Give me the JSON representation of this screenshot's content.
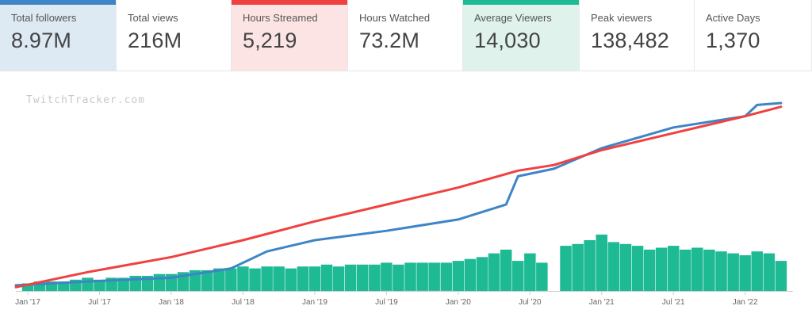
{
  "stats": [
    {
      "label": "Total followers",
      "value": "8.97M",
      "bg": "#dde9f3",
      "accent": "#3d85c6"
    },
    {
      "label": "Total views",
      "value": "216M",
      "bg": "#ffffff",
      "accent": ""
    },
    {
      "label": "Hours Streamed",
      "value": "5,219",
      "bg": "#fde4e4",
      "accent": "#f04141"
    },
    {
      "label": "Hours Watched",
      "value": "73.2M",
      "bg": "#ffffff",
      "accent": ""
    },
    {
      "label": "Average Viewers",
      "value": "14,030",
      "bg": "#dff3ec",
      "accent": "#1dba93"
    },
    {
      "label": "Peak viewers",
      "value": "138,482",
      "bg": "#ffffff",
      "accent": ""
    },
    {
      "label": "Active Days",
      "value": "1,370",
      "bg": "#ffffff",
      "accent": ""
    }
  ],
  "watermark": "TwitchTracker.com",
  "chart_data": {
    "type": "bar",
    "x_ticks": [
      "Jan '17",
      "Jul '17",
      "Jan '18",
      "Jul '18",
      "Jan '19",
      "Jul '19",
      "Jan '20",
      "Jul '20",
      "Jan '21",
      "Jul '21",
      "Jan '22"
    ],
    "x_range": [
      "2016-12",
      "2022-05"
    ],
    "ylim": [
      0,
      1
    ],
    "grid": false,
    "colors": {
      "viewers": "#1dba93",
      "followers": "#3d85c6",
      "hours": "#f04141"
    },
    "series": [
      {
        "type": "line",
        "color": "#3d85c6",
        "x": [
          "2016-12",
          "2017-06",
          "2018-01",
          "2018-06",
          "2018-09",
          "2019-01",
          "2019-07",
          "2020-01",
          "2020-05",
          "2020-06",
          "2020-09",
          "2021-01",
          "2021-07",
          "2022-01",
          "2022-02",
          "2022-04"
        ],
        "values": [
          0.03,
          0.05,
          0.07,
          0.12,
          0.21,
          0.27,
          0.32,
          0.38,
          0.46,
          0.61,
          0.65,
          0.76,
          0.87,
          0.93,
          0.99,
          1.0
        ]
      },
      {
        "type": "line",
        "color": "#f04141",
        "x": [
          "2016-12",
          "2017-06",
          "2018-01",
          "2018-07",
          "2019-01",
          "2019-07",
          "2020-01",
          "2020-06",
          "2020-09",
          "2021-01",
          "2021-07",
          "2022-01",
          "2022-04"
        ],
        "values": [
          0.02,
          0.1,
          0.18,
          0.27,
          0.37,
          0.46,
          0.55,
          0.64,
          0.67,
          0.75,
          0.84,
          0.93,
          0.98
        ]
      },
      {
        "type": "bar",
        "color": "#1dba93",
        "x": [
          "2017-01",
          "2017-02",
          "2017-03",
          "2017-04",
          "2017-05",
          "2017-06",
          "2017-07",
          "2017-08",
          "2017-09",
          "2017-10",
          "2017-11",
          "2017-12",
          "2018-01",
          "2018-02",
          "2018-03",
          "2018-04",
          "2018-05",
          "2018-06",
          "2018-07",
          "2018-08",
          "2018-09",
          "2018-10",
          "2018-11",
          "2018-12",
          "2019-01",
          "2019-02",
          "2019-03",
          "2019-04",
          "2019-05",
          "2019-06",
          "2019-07",
          "2019-08",
          "2019-09",
          "2019-10",
          "2019-11",
          "2019-12",
          "2020-01",
          "2020-02",
          "2020-03",
          "2020-04",
          "2020-05",
          "2020-06",
          "2020-07",
          "2020-08",
          "2020-09",
          "2020-10",
          "2020-11",
          "2020-12",
          "2021-01",
          "2021-02",
          "2021-03",
          "2021-04",
          "2021-05",
          "2021-06",
          "2021-07",
          "2021-08",
          "2021-09",
          "2021-10",
          "2021-11",
          "2021-12",
          "2022-01",
          "2022-02",
          "2022-03",
          "2022-04"
        ],
        "values": [
          0.04,
          0.05,
          0.05,
          0.05,
          0.06,
          0.07,
          0.06,
          0.07,
          0.07,
          0.08,
          0.08,
          0.09,
          0.09,
          0.1,
          0.11,
          0.11,
          0.12,
          0.12,
          0.13,
          0.12,
          0.13,
          0.13,
          0.12,
          0.13,
          0.13,
          0.14,
          0.13,
          0.14,
          0.14,
          0.14,
          0.15,
          0.14,
          0.15,
          0.15,
          0.15,
          0.15,
          0.16,
          0.17,
          0.18,
          0.2,
          0.22,
          0.16,
          0.2,
          0.15,
          0.0,
          0.24,
          0.25,
          0.27,
          0.3,
          0.26,
          0.25,
          0.24,
          0.22,
          0.23,
          0.24,
          0.22,
          0.23,
          0.22,
          0.21,
          0.2,
          0.19,
          0.21,
          0.2,
          0.16
        ]
      }
    ]
  }
}
